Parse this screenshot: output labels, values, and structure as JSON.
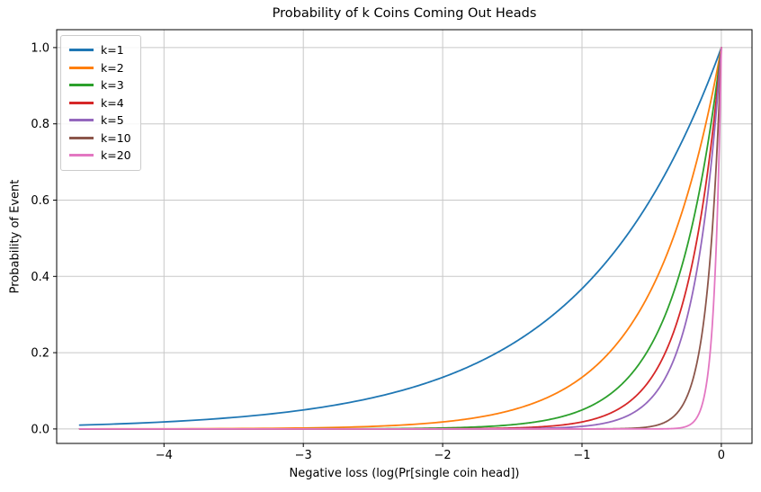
{
  "chart_data": {
    "type": "line",
    "title": "Probability of k Coins Coming Out Heads",
    "xlabel": "Negative loss (log(Pr[single coin head])",
    "ylabel": "Probability of Event",
    "xlim": [
      -4.77,
      0.22
    ],
    "ylim": [
      -0.038,
      1.047
    ],
    "x_ticks": [
      {
        "value": -4,
        "label": "−4"
      },
      {
        "value": -3,
        "label": "−3"
      },
      {
        "value": -2,
        "label": "−2"
      },
      {
        "value": -1,
        "label": "−1"
      },
      {
        "value": 0,
        "label": "0"
      }
    ],
    "y_ticks": [
      {
        "value": 0.0,
        "label": "0.0"
      },
      {
        "value": 0.2,
        "label": "0.2"
      },
      {
        "value": 0.4,
        "label": "0.4"
      },
      {
        "value": 0.6,
        "label": "0.6"
      },
      {
        "value": 0.8,
        "label": "0.8"
      },
      {
        "value": 1.0,
        "label": "1.0"
      }
    ],
    "grid": true,
    "grid_color": "#c8c8c8",
    "axis_color": "#000000",
    "legend_position": "upper left",
    "curve_model": "y = exp(k*x) = p^k, where x = log(p) for p in [0.01, 1]",
    "x_start": -4.605,
    "x_end": 0,
    "sample_x": [
      -4.61,
      -4,
      -3,
      -2,
      -1.5,
      -1,
      -0.5,
      -0.25,
      -0.1,
      0
    ],
    "series": [
      {
        "label": "k=1",
        "k": 1,
        "color": "#1f77b4",
        "sample_y": [
          0.01,
          0.0183,
          0.0498,
          0.1353,
          0.2231,
          0.3679,
          0.6065,
          0.7788,
          0.9048,
          1.0
        ]
      },
      {
        "label": "k=2",
        "k": 2,
        "color": "#ff7f0e",
        "sample_y": [
          0.0001,
          0.0003,
          0.0025,
          0.0183,
          0.0498,
          0.1353,
          0.3679,
          0.6065,
          0.8187,
          1.0
        ]
      },
      {
        "label": "k=3",
        "k": 3,
        "color": "#2ca02c",
        "sample_y": [
          0.0,
          0.0,
          0.0001,
          0.0025,
          0.0111,
          0.0498,
          0.2231,
          0.4724,
          0.7408,
          1.0
        ]
      },
      {
        "label": "k=4",
        "k": 4,
        "color": "#d62728",
        "sample_y": [
          0.0,
          0.0,
          0.0,
          0.0003,
          0.0025,
          0.0183,
          0.1353,
          0.3679,
          0.6703,
          1.0
        ]
      },
      {
        "label": "k=5",
        "k": 5,
        "color": "#9467bd",
        "sample_y": [
          0.0,
          0.0,
          0.0,
          0.0,
          0.0006,
          0.0067,
          0.0821,
          0.2865,
          0.6065,
          1.0
        ]
      },
      {
        "label": "k=10",
        "k": 10,
        "color": "#8c564b",
        "sample_y": [
          0.0,
          0.0,
          0.0,
          0.0,
          0.0,
          0.0,
          0.0067,
          0.0821,
          0.3679,
          1.0
        ]
      },
      {
        "label": "k=20",
        "k": 20,
        "color": "#e377c2",
        "sample_y": [
          0.0,
          0.0,
          0.0,
          0.0,
          0.0,
          0.0,
          0.0,
          0.0067,
          0.1353,
          1.0
        ]
      }
    ]
  }
}
